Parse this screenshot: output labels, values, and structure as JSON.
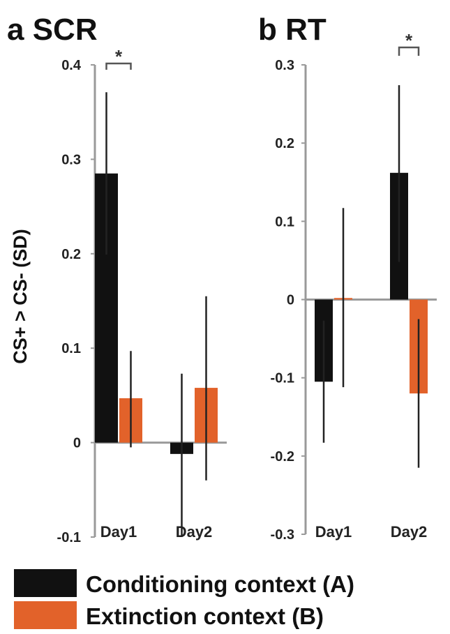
{
  "colors": {
    "conditioning": "#111111",
    "extinction": "#e2622a",
    "axis": "#9a9a9a",
    "error": "#222222"
  },
  "legend": [
    {
      "key": "conditioning",
      "label": "Conditioning context (A)"
    },
    {
      "key": "extinction",
      "label": "Extinction context (B)"
    }
  ],
  "chart_data": [
    {
      "type": "bar",
      "panel_letter": "a",
      "title": "SCR",
      "ylabel": "CS+ > CS-  (SD)",
      "categories": [
        "Day1",
        "Day2"
      ],
      "ylim": [
        -0.1,
        0.4
      ],
      "yticks": [
        0.4,
        0.3,
        0.2,
        0.1,
        0,
        -0.1
      ],
      "ytick_labels": [
        "0.4",
        "0.3",
        "0.2",
        "0.1",
        "0",
        "-0.1"
      ],
      "series": [
        {
          "name": "Conditioning context (A)",
          "key": "conditioning",
          "values": [
            0.285,
            -0.012
          ],
          "err_low": [
            0.199,
            -0.1
          ],
          "err_high": [
            0.371,
            0.073
          ]
        },
        {
          "name": "Extinction context (B)",
          "key": "extinction",
          "values": [
            0.047,
            0.058
          ],
          "err_low": [
            -0.005,
            -0.04
          ],
          "err_high": [
            0.097,
            0.155
          ]
        }
      ],
      "significance": [
        {
          "category": "Day1",
          "label": "*"
        }
      ]
    },
    {
      "type": "bar",
      "panel_letter": "b",
      "title": "RT",
      "ylabel": "",
      "categories": [
        "Day1",
        "Day2"
      ],
      "ylim": [
        -0.3,
        0.3
      ],
      "yticks": [
        0.3,
        0.2,
        0.1,
        0,
        -0.1,
        -0.2,
        -0.3
      ],
      "ytick_labels": [
        "0.3",
        "0.2",
        "0.1",
        "0",
        "-0.1",
        "-0.2",
        "-0.3"
      ],
      "series": [
        {
          "name": "Conditioning context (A)",
          "key": "conditioning",
          "values": [
            -0.105,
            0.162
          ],
          "err_low": [
            -0.183,
            0.048
          ],
          "err_high": [
            -0.027,
            0.274
          ]
        },
        {
          "name": "Extinction context (B)",
          "key": "extinction",
          "values": [
            0.002,
            -0.12
          ],
          "err_low": [
            -0.112,
            -0.215
          ],
          "err_high": [
            0.117,
            -0.025
          ]
        }
      ],
      "significance": [
        {
          "category": "Day2",
          "label": "*"
        }
      ]
    }
  ]
}
